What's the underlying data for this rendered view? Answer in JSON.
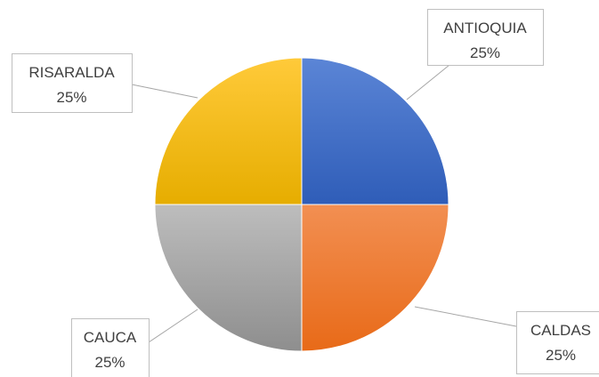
{
  "chart_data": {
    "type": "pie",
    "title": "",
    "slices": [
      {
        "category": "ANTIOQUIA",
        "value": 25,
        "label": "25%",
        "color": "#3E6EC6"
      },
      {
        "category": "CALDAS",
        "value": 25,
        "label": "25%",
        "color": "#EE7B2C"
      },
      {
        "category": "CAUCA",
        "value": 25,
        "label": "25%",
        "color": "#A5A5A5"
      },
      {
        "category": "RISARALDA",
        "value": 25,
        "label": "25%",
        "color": "#FFC000"
      }
    ],
    "legend": "none",
    "label_style": "callout"
  }
}
